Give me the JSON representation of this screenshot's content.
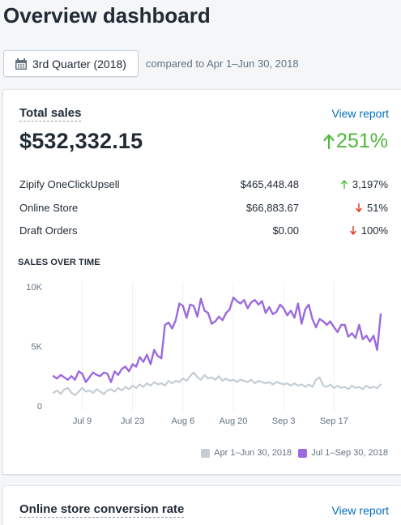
{
  "page": {
    "title": "Overview dashboard"
  },
  "date_range": {
    "label": "3rd Quarter (2018)",
    "compare_text": "compared to Apr 1–Jun 30, 2018"
  },
  "total_sales": {
    "title": "Total sales",
    "link": "View report",
    "value": "$532,332.15",
    "change": "251%",
    "change_color": "#50b83c",
    "rows": [
      {
        "name": "Zipify OneClickUpsell",
        "amount": "$465,448.48",
        "change": "3,197%",
        "direction": "up",
        "color": "#50b83c"
      },
      {
        "name": "Online Store",
        "amount": "$66,883.67",
        "change": "51%",
        "direction": "down",
        "color": "#de3618"
      },
      {
        "name": "Draft Orders",
        "amount": "$0.00",
        "change": "100%",
        "direction": "down",
        "color": "#de3618"
      }
    ],
    "chart_label": "SALES OVER TIME"
  },
  "chart_data": {
    "type": "line",
    "ylim": [
      0,
      10000
    ],
    "y_ticks": [
      0,
      5000,
      10000
    ],
    "y_tick_labels": [
      "0",
      "5K",
      "10K"
    ],
    "x_tick_labels": [
      "Jul 9",
      "Jul 23",
      "Aug 6",
      "Aug 20",
      "Sep 3",
      "Sep 17"
    ],
    "x_tick_days": [
      8,
      22,
      36,
      50,
      64,
      78
    ],
    "days": 92,
    "grid": "vertical",
    "legend_position": "bottom-right",
    "series": [
      {
        "name": "Apr 1–Jun 30, 2018",
        "color": "#c4cdd5",
        "values": [
          1100,
          1300,
          1000,
          1400,
          1500,
          1100,
          900,
          1200,
          1500,
          1200,
          1300,
          1100,
          1400,
          1200,
          1000,
          1300,
          1400,
          1200,
          1500,
          1300,
          1600,
          1400,
          1700,
          1500,
          1800,
          1600,
          1900,
          1700,
          2000,
          1800,
          1900,
          1700,
          2100,
          1900,
          2100,
          2000,
          2300,
          2100,
          2500,
          2800,
          2400,
          2200,
          2600,
          2300,
          2400,
          2200,
          2500,
          2100,
          2300,
          2100,
          2200,
          2000,
          2200,
          2100,
          2000,
          2200,
          1900,
          2100,
          2000,
          1900,
          2000,
          1800,
          2000,
          1900,
          1800,
          1900,
          1700,
          1900,
          1700,
          1800,
          1600,
          1800,
          1600,
          2200,
          2400,
          1700,
          1600,
          1800,
          1500,
          1700,
          1500,
          1600,
          1400,
          1700,
          1500,
          1600,
          1400,
          1700,
          1500,
          1600,
          1500,
          1800
        ]
      },
      {
        "name": "Jul 1–Sep 30, 2018",
        "color": "#9c6ade",
        "values": [
          2500,
          2300,
          2600,
          2400,
          2200,
          2500,
          2200,
          2900,
          2700,
          2000,
          2400,
          2800,
          2600,
          2500,
          2800,
          2700,
          2000,
          2900,
          2600,
          3100,
          3300,
          2900,
          3500,
          3300,
          4100,
          3700,
          4300,
          3500,
          4700,
          4200,
          4000,
          6800,
          7000,
          6500,
          7200,
          8600,
          8400,
          7400,
          8500,
          8400,
          7500,
          9000,
          8000,
          7800,
          6900,
          7100,
          7500,
          7200,
          7800,
          8100,
          9100,
          8800,
          8600,
          8900,
          8200,
          8700,
          8900,
          8500,
          8800,
          7800,
          8300,
          7700,
          7900,
          8500,
          8200,
          7600,
          8000,
          7400,
          8600,
          6900,
          8100,
          8500,
          7300,
          6600,
          7300,
          7100,
          6800,
          7100,
          6600,
          6200,
          6800,
          6800,
          5800,
          6100,
          5700,
          6800,
          5600,
          5900,
          5400,
          5900,
          4700,
          7700
        ]
      }
    ]
  },
  "conversion": {
    "title": "Online store conversion rate",
    "link": "View report"
  }
}
